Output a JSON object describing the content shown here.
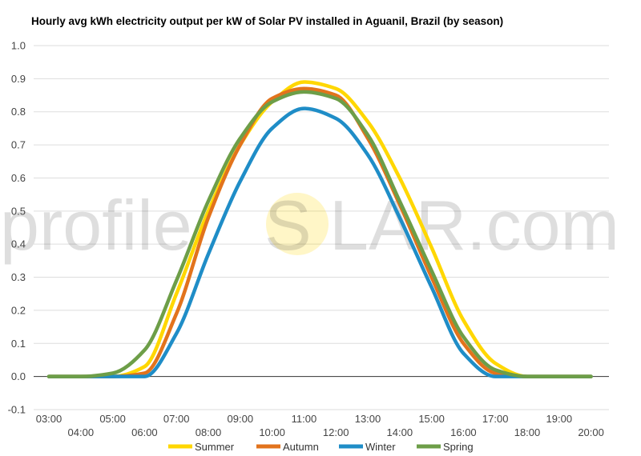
{
  "chart_data": {
    "type": "line",
    "title": "Hourly avg kWh electricity output per kW of Solar PV installed in Aguanil, Brazil (by season)",
    "xlabel": "",
    "ylabel": "",
    "x": [
      "03:00",
      "04:00",
      "05:00",
      "06:00",
      "07:00",
      "08:00",
      "09:00",
      "10:00",
      "11:00",
      "12:00",
      "13:00",
      "14:00",
      "15:00",
      "16:00",
      "17:00",
      "18:00",
      "19:00",
      "20:00"
    ],
    "ylim": [
      -0.1,
      1.0
    ],
    "yticks": [
      "-0.1",
      "0.0",
      "0.1",
      "0.2",
      "0.3",
      "0.4",
      "0.5",
      "0.6",
      "0.7",
      "0.8",
      "0.9",
      "1.0"
    ],
    "grid": true,
    "legend_position": "bottom",
    "series": [
      {
        "name": "Summer",
        "color": "#ffd700",
        "values": [
          0.0,
          0.0,
          0.0,
          0.03,
          0.25,
          0.5,
          0.7,
          0.83,
          0.89,
          0.87,
          0.77,
          0.6,
          0.39,
          0.17,
          0.04,
          0.0,
          0.0,
          0.0
        ]
      },
      {
        "name": "Autumn",
        "color": "#e2731c",
        "values": [
          0.0,
          0.0,
          0.0,
          0.01,
          0.19,
          0.48,
          0.7,
          0.84,
          0.87,
          0.85,
          0.72,
          0.52,
          0.3,
          0.1,
          0.01,
          0.0,
          0.0,
          0.0
        ]
      },
      {
        "name": "Winter",
        "color": "#1f8dc7",
        "values": [
          0.0,
          0.0,
          0.0,
          0.0,
          0.13,
          0.37,
          0.59,
          0.75,
          0.81,
          0.78,
          0.67,
          0.48,
          0.27,
          0.07,
          0.0,
          0.0,
          0.0,
          0.0
        ]
      },
      {
        "name": "Spring",
        "color": "#6d9e48",
        "values": [
          0.0,
          0.0,
          0.01,
          0.08,
          0.29,
          0.53,
          0.72,
          0.83,
          0.86,
          0.84,
          0.73,
          0.53,
          0.32,
          0.12,
          0.02,
          0.0,
          0.0,
          0.0
        ]
      }
    ]
  },
  "watermark": {
    "left": "profile",
    "center": "S",
    "right": "LAR.com",
    "sun_color": "#ffd700"
  }
}
